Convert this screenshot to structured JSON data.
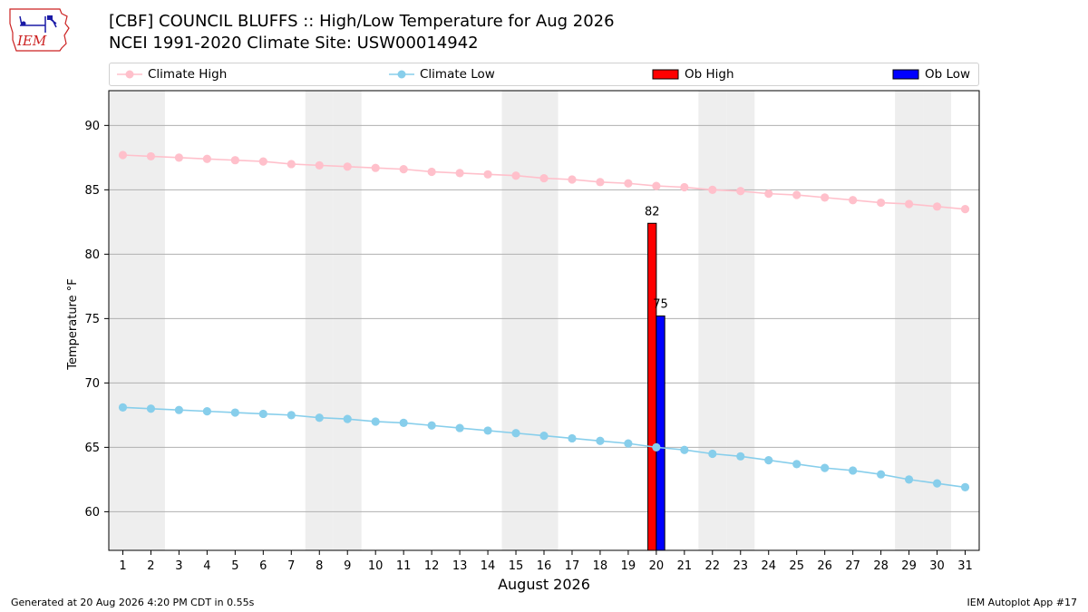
{
  "title": "[CBF] COUNCIL BLUFFS :: High/Low Temperature for Aug 2026",
  "subtitle": "NCEI 1991-2020 Climate Site: USW00014942",
  "logo_text": "IEM",
  "footer_left": "Generated at 20 Aug 2026 4:20 PM CDT in 0.55s",
  "footer_right": "IEM Autoplot App #17",
  "legend": {
    "climate_high": "Climate High",
    "climate_low": "Climate Low",
    "ob_high": "Ob High",
    "ob_low": "Ob Low",
    "placement": "top, above plot, full width"
  },
  "colors": {
    "climate_high": "#ffc0cb",
    "climate_low": "#87ceeb",
    "ob_high": "#ff0000",
    "ob_low": "#0000ff",
    "weekend_band": "#eeeeee",
    "grid": "#b0b0b0",
    "logo_red": "#cc2222",
    "logo_blue": "#1a1aa6"
  },
  "chart_data": {
    "type": "line",
    "title": "[CBF] COUNCIL BLUFFS :: High/Low Temperature for Aug 2026",
    "xlabel": "August 2026",
    "ylabel": "Temperature °F",
    "x": [
      1,
      2,
      3,
      4,
      5,
      6,
      7,
      8,
      9,
      10,
      11,
      12,
      13,
      14,
      15,
      16,
      17,
      18,
      19,
      20,
      21,
      22,
      23,
      24,
      25,
      26,
      27,
      28,
      29,
      30,
      31
    ],
    "xlim": [
      0.5,
      31.5
    ],
    "ylim": [
      57,
      92.7
    ],
    "yticks": [
      60,
      65,
      70,
      75,
      80,
      85,
      90
    ],
    "grid": "horizontal",
    "weekend_days": [
      1,
      2,
      8,
      9,
      15,
      16,
      22,
      23,
      29,
      30
    ],
    "series": [
      {
        "name": "Climate High",
        "type": "line",
        "values": [
          87.7,
          87.6,
          87.5,
          87.4,
          87.3,
          87.2,
          87.0,
          86.9,
          86.8,
          86.7,
          86.6,
          86.4,
          86.3,
          86.2,
          86.1,
          85.9,
          85.8,
          85.6,
          85.5,
          85.3,
          85.2,
          85.0,
          84.9,
          84.7,
          84.6,
          84.4,
          84.2,
          84.0,
          83.9,
          83.7,
          83.5
        ]
      },
      {
        "name": "Climate Low",
        "type": "line",
        "values": [
          68.1,
          68.0,
          67.9,
          67.8,
          67.7,
          67.6,
          67.5,
          67.3,
          67.2,
          67.0,
          66.9,
          66.7,
          66.5,
          66.3,
          66.1,
          65.9,
          65.7,
          65.5,
          65.3,
          65.0,
          64.8,
          64.5,
          64.3,
          64.0,
          63.7,
          63.4,
          63.2,
          62.9,
          62.5,
          62.2,
          61.9
        ]
      },
      {
        "name": "Ob High",
        "type": "bar",
        "x": [
          20
        ],
        "values": [
          82.4
        ],
        "labels": [
          "82"
        ]
      },
      {
        "name": "Ob Low",
        "type": "bar",
        "x": [
          20
        ],
        "values": [
          75.2
        ],
        "labels": [
          "75"
        ]
      }
    ]
  }
}
